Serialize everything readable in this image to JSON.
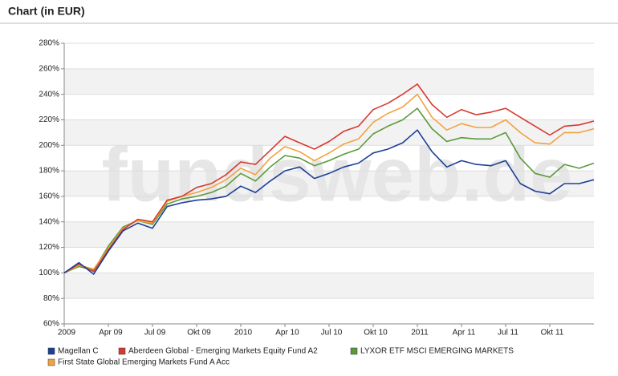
{
  "chart_data": {
    "type": "line",
    "title": "Chart (in EUR)",
    "watermark": "fundsweb.de",
    "categories": [
      "2009",
      null,
      null,
      "Apr 09",
      null,
      null,
      "Jul 09",
      null,
      null,
      "Okt 09",
      null,
      null,
      "2010",
      null,
      null,
      "Apr 10",
      null,
      null,
      "Jul 10",
      null,
      null,
      "Okt 10",
      null,
      null,
      "2011",
      null,
      null,
      "Apr 11",
      null,
      null,
      "Jul 11",
      null,
      null,
      "Okt 11",
      null,
      null,
      null
    ],
    "series": [
      {
        "name": "Magellan C",
        "color": "#1c3f96",
        "values": [
          100,
          108,
          99,
          117,
          133,
          139,
          135,
          152,
          155,
          157,
          158,
          160,
          168,
          163,
          172,
          180,
          183,
          174,
          178,
          183,
          186,
          194,
          197,
          202,
          212,
          195,
          183,
          188,
          185,
          184,
          188,
          170,
          164,
          162,
          170,
          170,
          173
        ]
      },
      {
        "name": "Aberdeen Global - Emerging Markets Equity Fund A2",
        "color": "#d63a2f",
        "values": [
          100,
          107,
          101,
          118,
          134,
          142,
          140,
          157,
          160,
          167,
          170,
          177,
          187,
          185,
          196,
          207,
          202,
          197,
          203,
          211,
          215,
          228,
          233,
          240,
          248,
          232,
          222,
          228,
          224,
          226,
          229,
          222,
          215,
          208,
          215,
          216,
          219
        ]
      },
      {
        "name": "LYXOR ETF MSCI EMERGING MARKETS",
        "color": "#5b9a3c",
        "values": [
          100,
          105,
          102,
          121,
          136,
          141,
          138,
          154,
          158,
          160,
          163,
          168,
          178,
          172,
          183,
          192,
          190,
          184,
          188,
          193,
          197,
          209,
          215,
          220,
          229,
          213,
          203,
          206,
          205,
          205,
          210,
          190,
          178,
          175,
          185,
          182,
          186
        ]
      },
      {
        "name": "First State Global Emerging Markets Fund A Acc",
        "color": "#f2a23e",
        "values": [
          100,
          106,
          103,
          119,
          135,
          141,
          139,
          156,
          160,
          163,
          167,
          173,
          182,
          177,
          190,
          199,
          195,
          188,
          194,
          201,
          205,
          218,
          225,
          230,
          240,
          222,
          212,
          217,
          214,
          214,
          220,
          210,
          202,
          201,
          210,
          210,
          213
        ]
      }
    ],
    "ylim": [
      60,
      280
    ],
    "yticks": [
      {
        "value": 60,
        "label": "60%"
      },
      {
        "value": 80,
        "label": "80%"
      },
      {
        "value": 100,
        "label": "100%"
      },
      {
        "value": 120,
        "label": "120%"
      },
      {
        "value": 140,
        "label": "140%"
      },
      {
        "value": 160,
        "label": "160%"
      },
      {
        "value": 180,
        "label": "180%"
      },
      {
        "value": 200,
        "label": "200%"
      },
      {
        "value": 220,
        "label": "220%"
      },
      {
        "value": 240,
        "label": "240%"
      },
      {
        "value": 260,
        "label": "260%"
      },
      {
        "value": 280,
        "label": "280%"
      }
    ],
    "grid": true
  }
}
